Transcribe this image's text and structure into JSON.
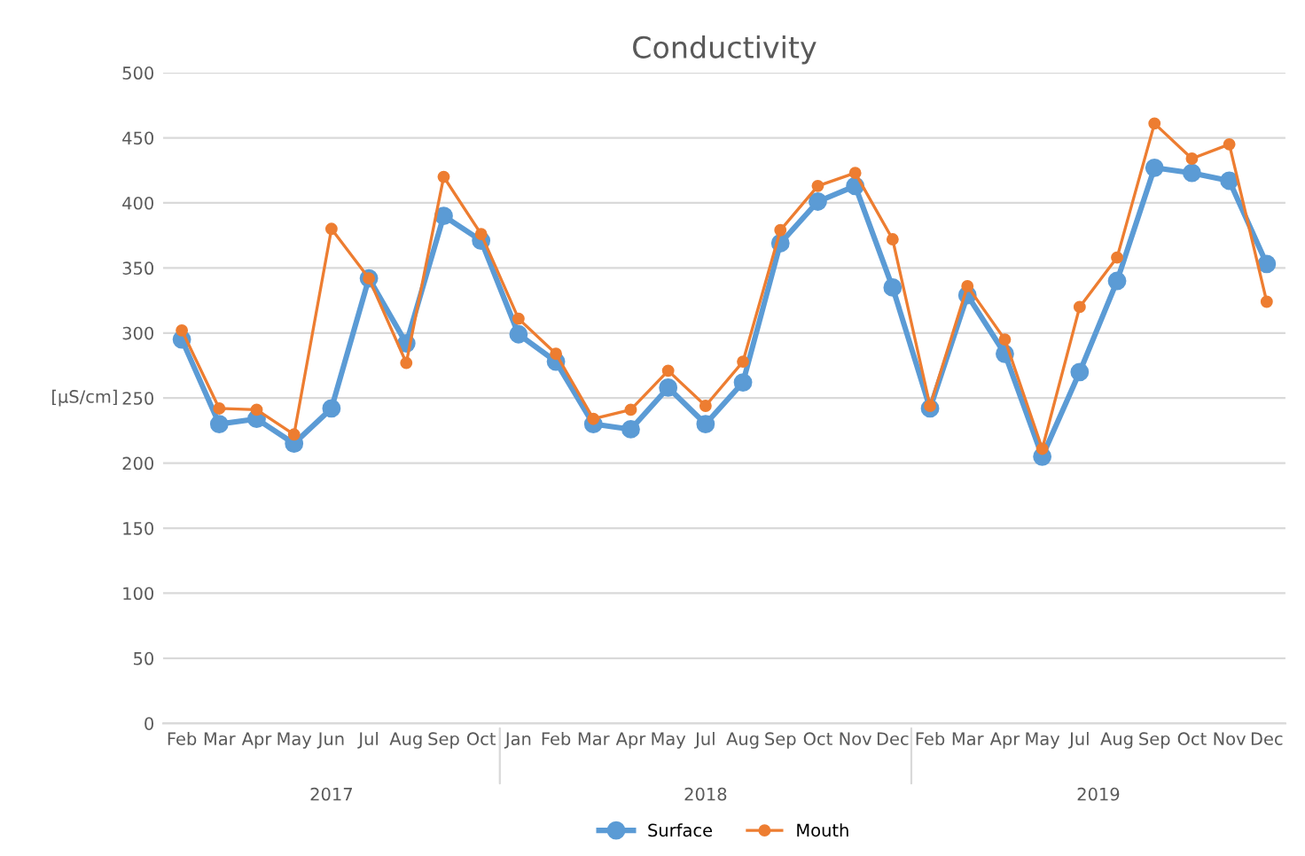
{
  "chart_data": {
    "type": "line",
    "title": "Conductivity",
    "ylabel": "[µS/cm]",
    "categories": [
      "Feb",
      "Mar",
      "Apr",
      "May",
      "Jun",
      "Jul",
      "Aug",
      "Sep",
      "Oct",
      "Jan",
      "Feb",
      "Mar",
      "Apr",
      "May",
      "Jul",
      "Aug",
      "Sep",
      "Oct",
      "Nov",
      "Dec",
      "Feb",
      "Mar",
      "Apr",
      "May",
      "Jul",
      "Aug",
      "Sep",
      "Oct",
      "Nov",
      "Dec"
    ],
    "series": [
      {
        "name": "Surface",
        "color": "#5b9bd5",
        "values": [
          295,
          230,
          234,
          215,
          242,
          342,
          292,
          390,
          371,
          299,
          278,
          230,
          226,
          258,
          230,
          262,
          369,
          401,
          413,
          335,
          242,
          329,
          284,
          205,
          270,
          340,
          427,
          423,
          417,
          353
        ]
      },
      {
        "name": "Mouth",
        "color": "#ed7d31",
        "values": [
          302,
          242,
          241,
          222,
          380,
          342,
          277,
          420,
          376,
          311,
          284,
          234,
          241,
          271,
          244,
          278,
          379,
          413,
          423,
          372,
          244,
          336,
          295,
          211,
          320,
          358,
          461,
          434,
          445,
          324
        ]
      }
    ],
    "ylim": [
      0,
      500
    ],
    "yticks": [
      0,
      50,
      100,
      150,
      200,
      250,
      300,
      350,
      400,
      450,
      500
    ],
    "grid": "y",
    "legend": "bottom",
    "marker": "circle",
    "line_style": "solid",
    "annotations": [
      "2017",
      "2018",
      "2019"
    ]
  }
}
